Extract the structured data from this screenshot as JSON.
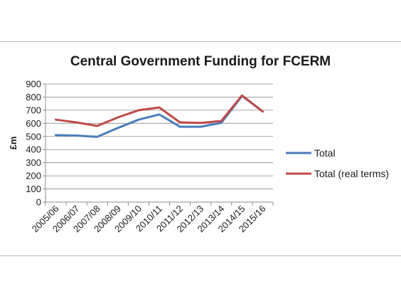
{
  "chart_data": {
    "type": "line",
    "title": "Central Government Funding for FCERM",
    "xlabel": "",
    "ylabel": "£m",
    "ylim": [
      0,
      900
    ],
    "yticks": [
      0,
      100,
      200,
      300,
      400,
      500,
      600,
      700,
      800,
      900
    ],
    "grid": "horizontal",
    "legend_position": "right",
    "categories": [
      "2005/06",
      "2006/07",
      "2007/08",
      "2008/09",
      "2009/10",
      "2010/11",
      "2011/12",
      "2012/13",
      "2013/14",
      "2014/15",
      "2015/16"
    ],
    "series": [
      {
        "name": "Total",
        "color": "#4a7ebb",
        "values": [
          510,
          507,
          497,
          565,
          628,
          668,
          574,
          574,
          604,
          809,
          690
        ]
      },
      {
        "name": "Total (real terms)",
        "color": "#be4b48",
        "values": [
          628,
          607,
          580,
          645,
          700,
          721,
          607,
          603,
          618,
          812,
          690
        ]
      }
    ]
  }
}
